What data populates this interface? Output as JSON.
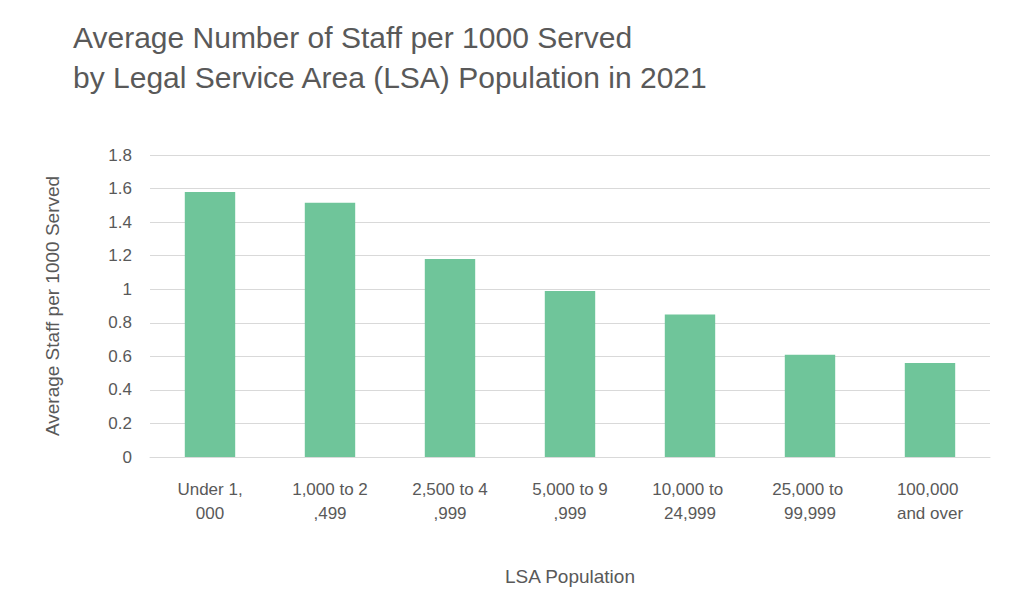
{
  "chart_data": {
    "type": "bar",
    "title": "Average Number of Staff per 1000 Served\nby Legal Service Area (LSA) Population in 2021",
    "x_label": "LSA Population",
    "y_label": "Average Staff per 1000 Served",
    "categories": [
      "Under 1,000",
      "1,000 to 2,499",
      "2,500 to 4,999",
      "5,000 to 9,999",
      "10,000 to 24,999",
      "25,000 to 99,999",
      "100,000 and over"
    ],
    "values": [
      1.58,
      1.515,
      1.18,
      0.99,
      0.85,
      0.61,
      0.56
    ],
    "color": "#6fc59a",
    "ylim": [
      0,
      1.8
    ],
    "yticks": [
      0,
      0.2,
      0.4,
      0.6,
      0.8,
      1,
      1.2,
      1.4,
      1.6,
      1.8
    ],
    "grid": true
  }
}
